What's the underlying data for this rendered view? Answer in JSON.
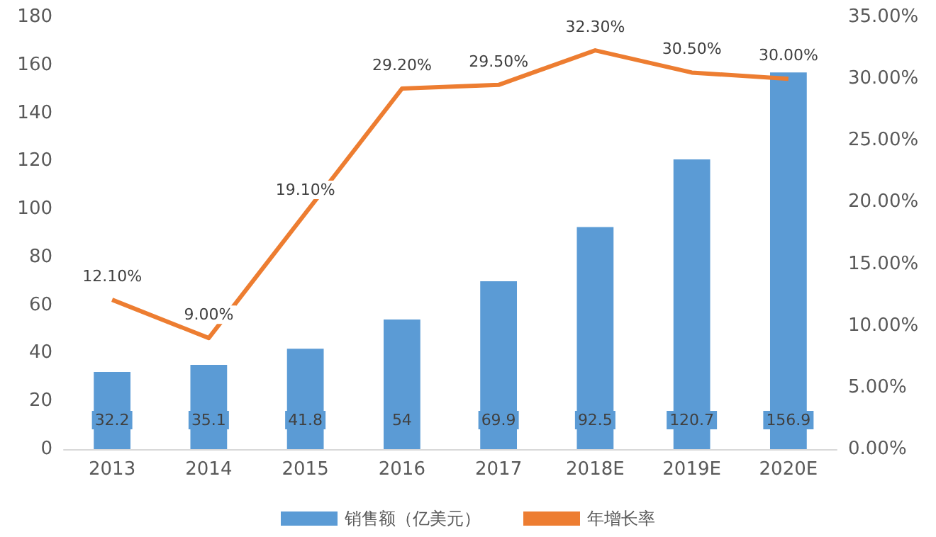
{
  "chart_data": {
    "type": "bar",
    "categories": [
      "2013",
      "2014",
      "2015",
      "2016",
      "2017",
      "2018E",
      "2019E",
      "2020E"
    ],
    "series": [
      {
        "name": "销售额（亿美元）",
        "color": "#5b9bd5",
        "values": [
          32.2,
          35.1,
          41.8,
          54,
          69.9,
          92.5,
          120.7,
          156.9
        ],
        "value_labels": [
          "32.2",
          "35.1",
          "41.8",
          "54",
          "69.9",
          "92.5",
          "120.7",
          "156.9"
        ]
      },
      {
        "name": "年增长率",
        "type": "line",
        "axis": "y2",
        "color": "#ed7d31",
        "values": [
          12.1,
          9.0,
          19.1,
          29.2,
          29.5,
          32.3,
          30.5,
          30.0
        ],
        "value_labels": [
          "12.10%",
          "9.00%",
          "19.10%",
          "29.20%",
          "29.50%",
          "32.30%",
          "30.50%",
          "30.00%"
        ]
      }
    ],
    "ylim": [
      0,
      180
    ],
    "yticks": [
      0,
      20,
      40,
      60,
      80,
      100,
      120,
      140,
      160,
      180
    ],
    "y2lim": [
      0,
      35
    ],
    "y2ticks": [
      {
        "value": 0,
        "label": "0.00%"
      },
      {
        "value": 5,
        "label": "5.00%"
      },
      {
        "value": 10,
        "label": "10.00%"
      },
      {
        "value": 15,
        "label": "15.00%"
      },
      {
        "value": 20,
        "label": "20.00%"
      },
      {
        "value": 25,
        "label": "25.00%"
      },
      {
        "value": 30,
        "label": "30.00%"
      },
      {
        "value": 35,
        "label": "35.00%"
      }
    ],
    "grid": false,
    "legend": "bottom",
    "marker": "none"
  }
}
